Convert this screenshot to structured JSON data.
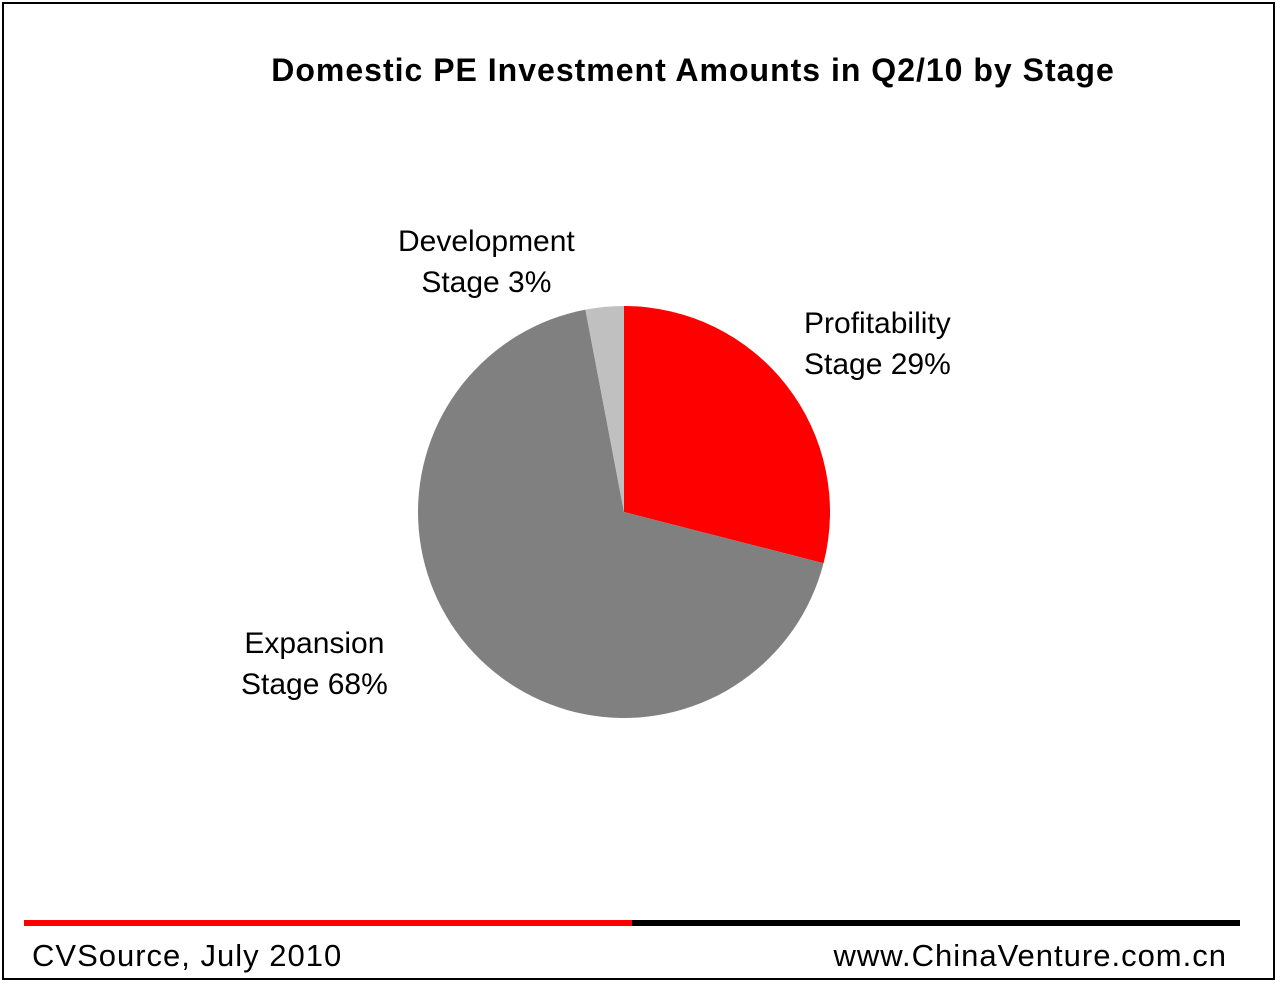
{
  "chart_data": {
    "type": "pie",
    "title": "Domestic PE Investment Amounts  in Q2/10 by Stage",
    "slices": [
      {
        "id": "profitability",
        "name_line1": "Profitability",
        "name_line2": "Stage 29%",
        "value": 29,
        "color": "#ff0000"
      },
      {
        "id": "expansion",
        "name_line1": "Expansion",
        "name_line2": "Stage 68%",
        "value": 68,
        "color": "#808080"
      },
      {
        "id": "development",
        "name_line1": "Development",
        "name_line2": "Stage 3%",
        "value": 3,
        "color": "#c0c0c0"
      }
    ]
  },
  "footer": {
    "source": "CVSource,  July 2010",
    "website": "www.ChinaVenture.com.cn"
  }
}
